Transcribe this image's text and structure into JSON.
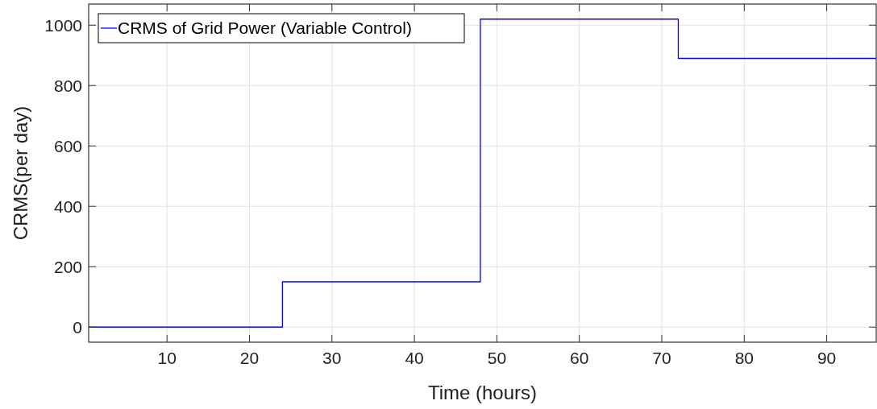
{
  "chart_data": {
    "type": "step",
    "xlabel": "Time (hours)",
    "ylabel": "CRMS(per day)",
    "x": [
      0.5,
      24,
      48,
      72,
      96
    ],
    "series": [
      {
        "name": "CRMS of Grid Power (Variable Control)",
        "color": "#0000ff",
        "values": [
          0,
          150,
          1020,
          890,
          890
        ]
      }
    ],
    "xlim": [
      0.5,
      96
    ],
    "xticks": [
      10,
      20,
      30,
      40,
      50,
      60,
      70,
      80,
      90
    ],
    "ylim": [
      -50,
      1070
    ],
    "yticks": [
      0,
      200,
      400,
      600,
      800,
      1000
    ],
    "grid": true,
    "legend": "top left"
  }
}
